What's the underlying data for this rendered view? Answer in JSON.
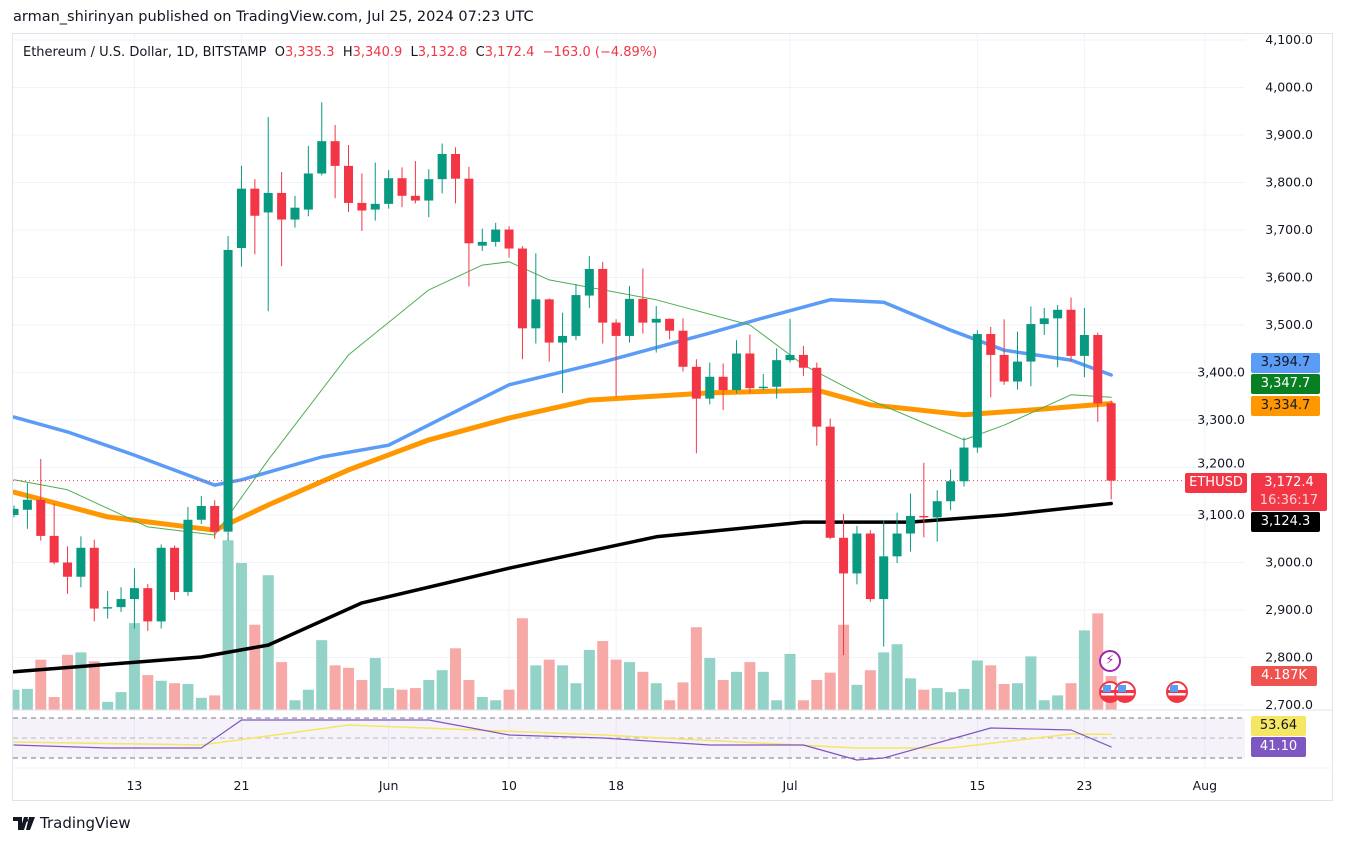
{
  "published": "arman_shirinyan published on TradingView.com, Jul 25, 2024 07:23 UTC",
  "legend": {
    "symbol": "Ethereum / U.S. Dollar, 1D, BITSTAMP",
    "o_label": "O",
    "o": "3,335.3",
    "h_label": "H",
    "h": "3,340.9",
    "l_label": "L",
    "l": "3,132.8",
    "c_label": "C",
    "c": "3,172.4",
    "change": "−163.0 (−4.89%)"
  },
  "badges": {
    "ma_blue": "3,394.7",
    "ma_green": "3,347.7",
    "ma_orange": "3,334.7",
    "ma_black": "3,124.3",
    "ticker": "ETHUSD",
    "price": "3,172.4",
    "countdown": "16:36:17",
    "volume": "4.187K",
    "rsi_ma": "53.64",
    "rsi": "41.10"
  },
  "brand": "TradingView",
  "colors": {
    "up": "#089981",
    "down": "#f23645",
    "vol_up": "#92d2c7",
    "vol_down": "#f7a9a7",
    "ma_blue": "#5b9cf6",
    "ma_orange": "#ff9800",
    "ma_green": "#4caf50",
    "ma_black": "#000000",
    "rsi": "#7e57c2",
    "rsi_ma": "#f5e663"
  },
  "events": [
    "lightning-icon",
    "us-flag-icon",
    "us-flag-icon",
    "us-flag-icon"
  ],
  "chart_data": {
    "type": "candlestick",
    "symbol": "ETHUSD",
    "grid": true,
    "ylim": [
      2700,
      4100
    ],
    "y_ticks": [
      "4,100.0",
      "4,000.0",
      "3,900.0",
      "3,800.0",
      "3,700.0",
      "3,600.0",
      "3,500.0",
      "3,400.0",
      "3,300.0",
      "3,200.0",
      "3,100.0",
      "3,000.0",
      "2,900.0",
      "2,800.0",
      "2,700.0"
    ],
    "x_ticks": [
      {
        "label": "13",
        "date": "2024-05-13"
      },
      {
        "label": "21",
        "date": "2024-05-21"
      },
      {
        "label": "Jun",
        "date": "2024-06-01"
      },
      {
        "label": "10",
        "date": "2024-06-10"
      },
      {
        "label": "18",
        "date": "2024-06-18"
      },
      {
        "label": "Jul",
        "date": "2024-07-01"
      },
      {
        "label": "15",
        "date": "2024-07-15"
      },
      {
        "label": "23",
        "date": "2024-07-23"
      },
      {
        "label": "Aug",
        "date": "2024-08-01"
      }
    ],
    "candle_fields": [
      "date",
      "open",
      "high",
      "low",
      "close",
      "volume_k"
    ],
    "candles": [
      [
        "2024-05-04",
        3100,
        3120,
        3095,
        3113,
        2.5
      ],
      [
        "2024-05-05",
        3111,
        3167,
        3071,
        3132,
        2.6
      ],
      [
        "2024-05-06",
        3132,
        3218,
        3046,
        3056,
        6.2
      ],
      [
        "2024-05-07",
        3056,
        3124,
        2996,
        3000,
        1.6
      ],
      [
        "2024-05-08",
        3000,
        3034,
        2934,
        2970,
        6.8
      ],
      [
        "2024-05-09",
        2970,
        3055,
        2948,
        3031,
        7.1
      ],
      [
        "2024-05-10",
        3031,
        3048,
        2876,
        2903,
        6.0
      ],
      [
        "2024-05-11",
        2903,
        2940,
        2882,
        2906,
        1.0
      ],
      [
        "2024-05-12",
        2906,
        2948,
        2896,
        2923,
        2.2
      ],
      [
        "2024-05-13",
        2923,
        2988,
        2861,
        2946,
        10.7
      ],
      [
        "2024-05-14",
        2946,
        2955,
        2856,
        2876,
        4.3
      ],
      [
        "2024-05-15",
        2876,
        3038,
        2861,
        3031,
        3.6
      ],
      [
        "2024-05-16",
        3031,
        3036,
        2921,
        2938,
        3.3
      ],
      [
        "2024-05-17",
        2938,
        3117,
        2930,
        3090,
        3.2
      ],
      [
        "2024-05-18",
        3090,
        3140,
        3081,
        3119,
        1.5
      ],
      [
        "2024-05-19",
        3119,
        3131,
        3050,
        3065,
        1.8
      ],
      [
        "2024-05-20",
        3065,
        3687,
        3046,
        3658,
        20.9
      ],
      [
        "2024-05-21",
        3662,
        3835,
        3623,
        3787,
        18.1
      ],
      [
        "2024-05-22",
        3787,
        3807,
        3649,
        3730,
        10.5
      ],
      [
        "2024-05-23",
        3737,
        3938,
        3529,
        3778,
        16.6
      ],
      [
        "2024-05-24",
        3778,
        3822,
        3624,
        3722,
        5.9
      ],
      [
        "2024-05-25",
        3722,
        3772,
        3705,
        3747,
        1.2
      ],
      [
        "2024-05-26",
        3743,
        3877,
        3729,
        3819,
        2.5
      ],
      [
        "2024-05-27",
        3819,
        3969,
        3815,
        3887,
        8.6
      ],
      [
        "2024-05-28",
        3887,
        3921,
        3767,
        3835,
        5.5
      ],
      [
        "2024-05-29",
        3835,
        3879,
        3738,
        3757,
        5.2
      ],
      [
        "2024-05-30",
        3757,
        3819,
        3698,
        3741,
        3.7
      ],
      [
        "2024-05-31",
        3743,
        3842,
        3720,
        3755,
        6.4
      ],
      [
        "2024-06-01",
        3755,
        3826,
        3745,
        3809,
        2.7
      ],
      [
        "2024-06-02",
        3809,
        3832,
        3748,
        3772,
        2.5
      ],
      [
        "2024-06-03",
        3772,
        3845,
        3756,
        3762,
        2.7
      ],
      [
        "2024-06-04",
        3762,
        3828,
        3727,
        3807,
        3.7
      ],
      [
        "2024-06-05",
        3807,
        3882,
        3777,
        3860,
        4.9
      ],
      [
        "2024-06-06",
        3860,
        3874,
        3756,
        3808,
        7.6
      ],
      [
        "2024-06-07",
        3808,
        3833,
        3581,
        3672,
        3.7
      ],
      [
        "2024-06-08",
        3667,
        3703,
        3656,
        3675,
        1.6
      ],
      [
        "2024-06-09",
        3675,
        3715,
        3665,
        3701,
        1.2
      ],
      [
        "2024-06-10",
        3701,
        3708,
        3642,
        3661,
        2.5
      ],
      [
        "2024-06-11",
        3661,
        3666,
        3428,
        3493,
        11.3
      ],
      [
        "2024-06-12",
        3493,
        3651,
        3461,
        3554,
        5.5
      ],
      [
        "2024-06-13",
        3554,
        3556,
        3423,
        3463,
        6.2
      ],
      [
        "2024-06-14",
        3463,
        3526,
        3357,
        3477,
        5.5
      ],
      [
        "2024-06-15",
        3477,
        3586,
        3468,
        3563,
        3.3
      ],
      [
        "2024-06-16",
        3562,
        3645,
        3536,
        3618,
        7.4
      ],
      [
        "2024-06-17",
        3618,
        3633,
        3461,
        3505,
        8.5
      ],
      [
        "2024-06-18",
        3505,
        3512,
        3349,
        3477,
        6.2
      ],
      [
        "2024-06-19",
        3477,
        3582,
        3463,
        3555,
        5.9
      ],
      [
        "2024-06-20",
        3555,
        3619,
        3482,
        3505,
        4.7
      ],
      [
        "2024-06-21",
        3505,
        3540,
        3442,
        3513,
        3.3
      ],
      [
        "2024-06-22",
        3513,
        3514,
        3470,
        3488,
        1.2
      ],
      [
        "2024-06-23",
        3488,
        3514,
        3402,
        3412,
        3.4
      ],
      [
        "2024-06-24",
        3412,
        3428,
        3230,
        3345,
        10.2
      ],
      [
        "2024-06-25",
        3345,
        3421,
        3333,
        3391,
        6.4
      ],
      [
        "2024-06-26",
        3391,
        3419,
        3321,
        3363,
        3.7
      ],
      [
        "2024-06-27",
        3363,
        3468,
        3356,
        3440,
        4.7
      ],
      [
        "2024-06-28",
        3440,
        3480,
        3357,
        3367,
        5.9
      ],
      [
        "2024-06-29",
        3367,
        3397,
        3363,
        3370,
        4.7
      ],
      [
        "2024-06-30",
        3370,
        3451,
        3345,
        3426,
        1.2
      ],
      [
        "2024-07-01",
        3426,
        3513,
        3421,
        3437,
        6.9
      ],
      [
        "2024-07-02",
        3437,
        3456,
        3393,
        3410,
        1.2
      ],
      [
        "2024-07-03",
        3410,
        3421,
        3246,
        3286,
        3.7
      ],
      [
        "2024-07-04",
        3286,
        3303,
        3049,
        3052,
        4.6
      ],
      [
        "2024-07-05",
        3052,
        3102,
        2805,
        2977,
        10.5
      ],
      [
        "2024-07-06",
        2977,
        3077,
        2954,
        3061,
        3.1
      ],
      [
        "2024-07-07",
        3061,
        3068,
        2917,
        2923,
        4.9
      ],
      [
        "2024-07-08",
        2923,
        3089,
        2823,
        3013,
        7.1
      ],
      [
        "2024-07-09",
        3013,
        3105,
        2999,
        3061,
        8.1
      ],
      [
        "2024-07-10",
        3061,
        3145,
        3023,
        3098,
        3.9
      ],
      [
        "2024-07-11",
        3098,
        3210,
        3053,
        3095,
        2.5
      ],
      [
        "2024-07-12",
        3095,
        3152,
        3044,
        3129,
        2.7
      ],
      [
        "2024-07-13",
        3129,
        3196,
        3110,
        3171,
        2.2
      ],
      [
        "2024-07-14",
        3171,
        3263,
        3160,
        3242,
        2.6
      ],
      [
        "2024-07-15",
        3242,
        3489,
        3231,
        3481,
        6.1
      ],
      [
        "2024-07-16",
        3481,
        3496,
        3348,
        3437,
        5.5
      ],
      [
        "2024-07-17",
        3437,
        3512,
        3374,
        3381,
        3.2
      ],
      [
        "2024-07-18",
        3381,
        3486,
        3364,
        3423,
        3.3
      ],
      [
        "2024-07-19",
        3423,
        3539,
        3371,
        3502,
        6.6
      ],
      [
        "2024-07-20",
        3502,
        3536,
        3479,
        3514,
        1.2
      ],
      [
        "2024-07-21",
        3514,
        3542,
        3411,
        3532,
        1.8
      ],
      [
        "2024-07-22",
        3532,
        3558,
        3423,
        3435,
        3.3
      ],
      [
        "2024-07-23",
        3435,
        3536,
        3390,
        3479,
        9.8
      ],
      [
        "2024-07-24",
        3479,
        3484,
        3296,
        3335,
        11.9
      ],
      [
        "2024-07-25",
        3335.3,
        3340.9,
        3132.8,
        3172.4,
        4.187
      ]
    ],
    "moving_averages": [
      {
        "color": "#5b9cf6",
        "width": 3.5,
        "points": [
          [
            "2024-05-04",
            3306
          ],
          [
            "2024-05-08",
            3275
          ],
          [
            "2024-05-13",
            3226
          ],
          [
            "2024-05-19",
            3163
          ],
          [
            "2024-05-21",
            3174
          ],
          [
            "2024-05-27",
            3222
          ],
          [
            "2024-06-01",
            3247
          ],
          [
            "2024-06-07",
            3332
          ],
          [
            "2024-06-10",
            3374
          ],
          [
            "2024-06-17",
            3422
          ],
          [
            "2024-06-25",
            3483
          ],
          [
            "2024-06-29",
            3515
          ],
          [
            "2024-07-04",
            3553
          ],
          [
            "2024-07-08",
            3548
          ],
          [
            "2024-07-13",
            3489
          ],
          [
            "2024-07-17",
            3447
          ],
          [
            "2024-07-22",
            3426
          ],
          [
            "2024-07-25",
            3394.7
          ]
        ]
      },
      {
        "color": "#ff9800",
        "width": 5,
        "points": [
          [
            "2024-05-04",
            3148
          ],
          [
            "2024-05-11",
            3096
          ],
          [
            "2024-05-19",
            3068
          ],
          [
            "2024-05-23",
            3121
          ],
          [
            "2024-05-29",
            3195
          ],
          [
            "2024-06-04",
            3258
          ],
          [
            "2024-06-10",
            3304
          ],
          [
            "2024-06-16",
            3342
          ],
          [
            "2024-06-25",
            3357
          ],
          [
            "2024-07-03",
            3363
          ],
          [
            "2024-07-07",
            3332
          ],
          [
            "2024-07-14",
            3311
          ],
          [
            "2024-07-19",
            3321
          ],
          [
            "2024-07-25",
            3334.7
          ]
        ]
      },
      {
        "color": "#4caf50",
        "width": 1,
        "points": [
          [
            "2024-05-04",
            3174
          ],
          [
            "2024-05-08",
            3153
          ],
          [
            "2024-05-14",
            3075
          ],
          [
            "2024-05-19",
            3058
          ],
          [
            "2024-05-23",
            3216
          ],
          [
            "2024-05-29",
            3437
          ],
          [
            "2024-06-04",
            3574
          ],
          [
            "2024-06-08",
            3626
          ],
          [
            "2024-06-10",
            3633
          ],
          [
            "2024-06-13",
            3595
          ],
          [
            "2024-06-21",
            3553
          ],
          [
            "2024-06-28",
            3500
          ],
          [
            "2024-07-02",
            3416
          ],
          [
            "2024-07-07",
            3342
          ],
          [
            "2024-07-14",
            3258
          ],
          [
            "2024-07-17",
            3289
          ],
          [
            "2024-07-22",
            3353
          ],
          [
            "2024-07-25",
            3347.7
          ]
        ]
      },
      {
        "color": "#000000",
        "width": 3.5,
        "points": [
          [
            "2024-05-04",
            2770
          ],
          [
            "2024-05-18",
            2801
          ],
          [
            "2024-05-23",
            2826
          ],
          [
            "2024-05-30",
            2915
          ],
          [
            "2024-06-10",
            2988
          ],
          [
            "2024-06-21",
            3054
          ],
          [
            "2024-07-02",
            3085
          ],
          [
            "2024-07-10",
            3085
          ],
          [
            "2024-07-17",
            3100
          ],
          [
            "2024-07-25",
            3124.3
          ]
        ]
      }
    ],
    "last_price": 3172.4,
    "rsi": {
      "ylim": [
        30,
        70
      ],
      "bands": [
        70,
        50,
        30
      ],
      "rsi_points": [
        [
          "2024-05-04",
          43
        ],
        [
          "2024-05-11",
          40
        ],
        [
          "2024-05-18",
          40
        ],
        [
          "2024-05-21",
          68
        ],
        [
          "2024-06-04",
          68
        ],
        [
          "2024-06-10",
          53
        ],
        [
          "2024-06-17",
          50
        ],
        [
          "2024-06-25",
          43
        ],
        [
          "2024-07-02",
          43
        ],
        [
          "2024-07-06",
          28
        ],
        [
          "2024-07-08",
          30
        ],
        [
          "2024-07-16",
          60
        ],
        [
          "2024-07-22",
          58
        ],
        [
          "2024-07-25",
          41.1
        ]
      ],
      "ma_points": [
        [
          "2024-05-04",
          46
        ],
        [
          "2024-05-18",
          43
        ],
        [
          "2024-05-29",
          63
        ],
        [
          "2024-06-17",
          53
        ],
        [
          "2024-07-06",
          40
        ],
        [
          "2024-07-13",
          40
        ],
        [
          "2024-07-22",
          54
        ],
        [
          "2024-07-25",
          53.64
        ]
      ]
    }
  }
}
